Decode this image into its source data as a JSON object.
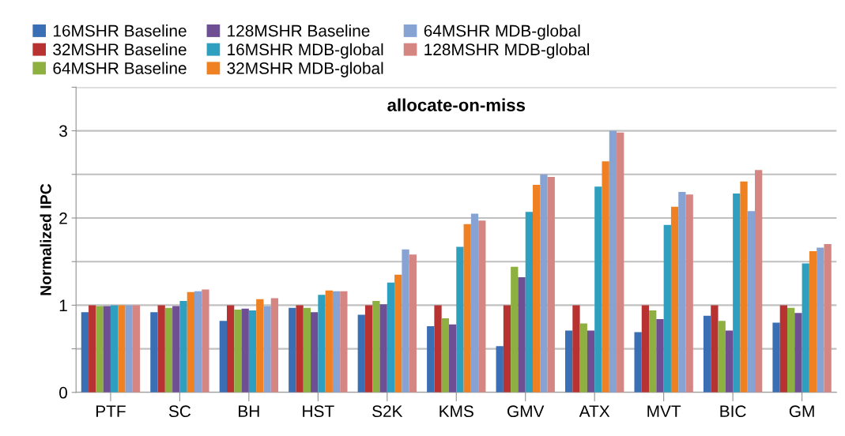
{
  "chart_data": {
    "type": "bar",
    "title": "allocate-on-miss",
    "ylabel": "Normalized IPC",
    "categories": [
      "PTF",
      "SC",
      "BH",
      "HST",
      "S2K",
      "KMS",
      "GMV",
      "ATX",
      "MVT",
      "BIC",
      "GM"
    ],
    "series": [
      {
        "name": "16MSHR Baseline",
        "color": "#3a6fb5",
        "values": [
          0.92,
          0.92,
          0.82,
          0.97,
          0.89,
          0.76,
          0.53,
          0.71,
          0.69,
          0.88,
          0.8
        ]
      },
      {
        "name": "32MSHR Baseline",
        "color": "#b83232",
        "values": [
          1.0,
          1.0,
          1.0,
          1.0,
          1.0,
          1.0,
          1.0,
          1.0,
          1.0,
          1.0,
          1.0
        ]
      },
      {
        "name": "64MSHR Baseline",
        "color": "#8db040",
        "values": [
          0.99,
          0.97,
          0.95,
          0.97,
          1.05,
          0.85,
          1.44,
          0.79,
          0.94,
          0.82,
          0.97
        ]
      },
      {
        "name": "128MSHR Baseline",
        "color": "#6e4f94",
        "values": [
          0.99,
          0.99,
          0.96,
          0.92,
          1.01,
          0.78,
          1.32,
          0.71,
          0.84,
          0.71,
          0.91
        ]
      },
      {
        "name": "16MSHR MDB-global",
        "color": "#2f9fbf",
        "values": [
          1.0,
          1.05,
          0.94,
          1.12,
          1.26,
          1.67,
          2.07,
          2.36,
          1.92,
          2.28,
          1.48
        ]
      },
      {
        "name": "32MSHR MDB-global",
        "color": "#ef8122",
        "values": [
          1.0,
          1.15,
          1.07,
          1.17,
          1.35,
          1.93,
          2.38,
          2.65,
          2.13,
          2.42,
          1.62
        ]
      },
      {
        "name": "64MSHR MDB-global",
        "color": "#87a3d3",
        "values": [
          1.0,
          1.16,
          0.99,
          1.16,
          1.64,
          2.05,
          2.5,
          3.0,
          2.3,
          2.08,
          1.66
        ]
      },
      {
        "name": "128MSHR MDB-global",
        "color": "#d58683",
        "values": [
          1.0,
          1.18,
          1.08,
          1.16,
          1.58,
          1.97,
          2.47,
          2.98,
          2.27,
          2.55,
          1.7
        ]
      }
    ],
    "ylim": [
      0,
      3.5
    ],
    "yticks": [
      0,
      {
        "value": 0.5,
        "label": null
      },
      1,
      {
        "value": 1.5,
        "label": null
      },
      2,
      {
        "value": 2.5,
        "label": null
      },
      3,
      {
        "value": 3.5,
        "label": null
      }
    ],
    "grid": "y",
    "legend": "top"
  }
}
